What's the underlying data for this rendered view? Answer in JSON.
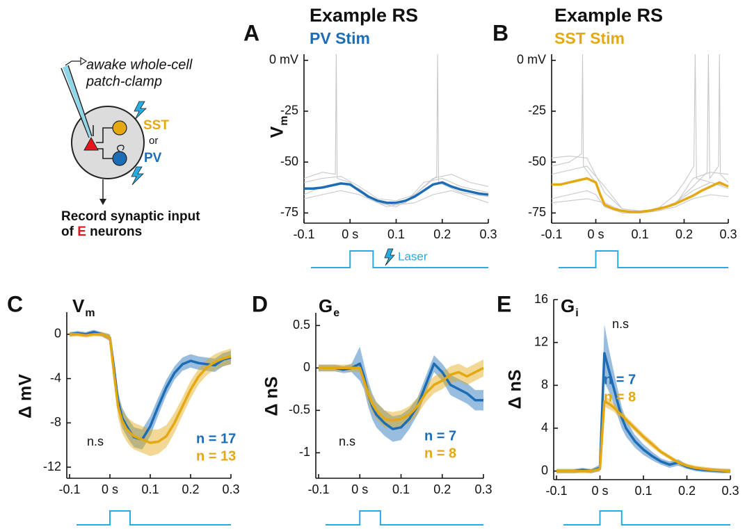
{
  "diagram": {
    "pipette_line1": "awake whole-cell",
    "pipette_line2": "patch-clamp",
    "sst": "SST",
    "or": "or",
    "pv": "PV",
    "caption_line1": "Record synaptic input",
    "caption_prefix": "of ",
    "caption_highlight": "E",
    "caption_suffix": " neurons"
  },
  "chart_data": [
    {
      "type": "line",
      "panel_label": "A",
      "title": "Example RS",
      "subtitle": "PV Stim",
      "subtitle_color": "#1c6db5",
      "ylabel": "V",
      "ylabel_sub": "m",
      "xlim": [
        -0.1,
        0.3
      ],
      "xticks": [
        -0.1,
        {
          "value": 0,
          "label": "0 s"
        },
        0.1,
        0.2,
        0.3
      ],
      "ylim": [
        -80,
        3
      ],
      "yticks": [
        {
          "value": 0,
          "label": "0 mV"
        },
        -25,
        -50,
        -75
      ],
      "stimulus": {
        "start": 0,
        "end": 0.05,
        "color": "#29abe2",
        "label": "Laser"
      },
      "trials": [
        {
          "color": "#c8c8c8",
          "x": [
            -0.1,
            -0.06,
            -0.032,
            -0.03,
            -0.028,
            0,
            0.04,
            0.08,
            0.12,
            0.16,
            0.2,
            0.24,
            0.3
          ],
          "values": [
            -58,
            -55,
            -56,
            3,
            -58,
            -60,
            -68,
            -72,
            -70,
            -60,
            -58,
            -62,
            -65
          ]
        },
        {
          "color": "#c8c8c8",
          "x": [
            -0.1,
            -0.06,
            -0.02,
            0.02,
            0.06,
            0.1,
            0.14,
            0.188,
            0.19,
            0.192,
            0.24,
            0.3
          ],
          "values": [
            -66,
            -62,
            -60,
            -63,
            -70,
            -72,
            -66,
            -57,
            3,
            -60,
            -65,
            -67
          ]
        },
        {
          "color": "#c8c8c8",
          "x": [
            -0.1,
            -0.06,
            -0.02,
            0.02,
            0.06,
            0.1,
            0.14,
            0.18,
            0.22,
            0.26,
            0.3
          ],
          "values": [
            -68,
            -66,
            -64,
            -66,
            -70,
            -71,
            -70,
            -66,
            -64,
            -67,
            -70
          ]
        },
        {
          "color": "#c8c8c8",
          "x": [
            -0.1,
            -0.06,
            -0.02,
            0.02,
            0.06,
            0.1,
            0.14,
            0.18,
            0.22,
            0.26,
            0.3
          ],
          "values": [
            -60,
            -58,
            -57,
            -62,
            -68,
            -69,
            -66,
            -58,
            -56,
            -60,
            -62
          ]
        }
      ],
      "x": [
        -0.1,
        -0.08,
        -0.06,
        -0.04,
        -0.02,
        0,
        0.02,
        0.04,
        0.06,
        0.08,
        0.1,
        0.12,
        0.14,
        0.16,
        0.18,
        0.2,
        0.22,
        0.24,
        0.26,
        0.28,
        0.3
      ],
      "series": [
        {
          "color": "#1c6db5",
          "values": [
            -63,
            -63,
            -62.5,
            -61.5,
            -60.5,
            -61,
            -64,
            -67,
            -69,
            -70,
            -70,
            -69,
            -67,
            -64,
            -61,
            -60,
            -62,
            -63.5,
            -64.5,
            -65.5,
            -66
          ]
        }
      ]
    },
    {
      "type": "line",
      "panel_label": "B",
      "title": "Example RS",
      "subtitle": "SST Stim",
      "subtitle_color": "#e3a812",
      "xlim": [
        -0.1,
        0.3
      ],
      "xticks": [
        -0.1,
        {
          "value": 0,
          "label": "0 s"
        },
        0.1,
        0.2,
        0.3
      ],
      "ylim": [
        -80,
        3
      ],
      "yticks": [
        {
          "value": 0,
          "label": "0 mV"
        },
        -25,
        -50,
        -75
      ],
      "stimulus": {
        "start": 0,
        "end": 0.05,
        "color": "#29abe2"
      },
      "trials": [
        {
          "color": "#c8c8c8",
          "x": [
            -0.1,
            -0.06,
            -0.032,
            -0.03,
            -0.028,
            0,
            0.02,
            0.06,
            0.1,
            0.14,
            0.18,
            0.2,
            0.222,
            0.225,
            0.228,
            0.26,
            0.3
          ],
          "values": [
            -52,
            -50,
            -46,
            3,
            -52,
            -60,
            -72,
            -75,
            -75,
            -73,
            -66,
            -60,
            -52,
            3,
            -58,
            -60,
            -63
          ]
        },
        {
          "color": "#c8c8c8",
          "x": [
            -0.1,
            -0.06,
            -0.02,
            0,
            0.02,
            0.06,
            0.1,
            0.14,
            0.18,
            0.22,
            0.252,
            0.255,
            0.258,
            0.278,
            0.28,
            0.282,
            0.3
          ],
          "values": [
            -68,
            -66,
            -64,
            -66,
            -72,
            -74,
            -75,
            -74,
            -70,
            -62,
            -55,
            3,
            -58,
            -52,
            3,
            -56,
            -60
          ]
        },
        {
          "color": "#c8c8c8",
          "x": [
            -0.1,
            -0.06,
            -0.02,
            0.02,
            0.06,
            0.1,
            0.14,
            0.18,
            0.22,
            0.26,
            0.3
          ],
          "values": [
            -48,
            -47,
            -48,
            -65,
            -73,
            -74,
            -73,
            -70,
            -64,
            -60,
            -62
          ]
        },
        {
          "color": "#c8c8c8",
          "x": [
            -0.1,
            -0.06,
            -0.02,
            0.02,
            0.06,
            0.1,
            0.14,
            0.18,
            0.22,
            0.26,
            0.3
          ],
          "values": [
            -70,
            -69,
            -68,
            -70,
            -74,
            -75,
            -74,
            -72,
            -68,
            -66,
            -67
          ]
        },
        {
          "color": "#c8c8c8",
          "x": [
            -0.1,
            -0.06,
            -0.02,
            0.02,
            0.06,
            0.1,
            0.14,
            0.18,
            0.22,
            0.26,
            0.3
          ],
          "values": [
            -56,
            -54,
            -52,
            -62,
            -73,
            -74,
            -73,
            -71,
            -58,
            -55,
            -56
          ]
        }
      ],
      "x": [
        -0.1,
        -0.08,
        -0.06,
        -0.04,
        -0.02,
        0,
        0.01,
        0.02,
        0.04,
        0.06,
        0.08,
        0.1,
        0.12,
        0.14,
        0.16,
        0.18,
        0.2,
        0.22,
        0.24,
        0.26,
        0.28,
        0.3
      ],
      "series": [
        {
          "color": "#e3a812",
          "values": [
            -61,
            -61,
            -60,
            -59,
            -58,
            -60,
            -66,
            -71,
            -73,
            -74,
            -74.5,
            -74.5,
            -74,
            -73,
            -72,
            -70.5,
            -68.5,
            -66.5,
            -64,
            -62,
            -60,
            -62
          ]
        }
      ]
    },
    {
      "type": "line",
      "panel_label": "C",
      "title": "V",
      "title_sub": "m",
      "ylabel": "Δ mV",
      "annotation": "n.s",
      "xlim": [
        -0.1,
        0.3
      ],
      "xticks": [
        -0.1,
        {
          "value": 0,
          "label": "0 s"
        },
        0.1,
        0.2,
        0.3
      ],
      "ylim": [
        -13,
        2
      ],
      "yticks": [
        0,
        -4,
        -8,
        -12
      ],
      "stimulus": {
        "start": 0,
        "end": 0.05,
        "color": "#29abe2"
      },
      "x": [
        -0.1,
        -0.08,
        -0.06,
        -0.04,
        -0.02,
        0,
        0.01,
        0.02,
        0.03,
        0.04,
        0.05,
        0.06,
        0.08,
        0.1,
        0.12,
        0.14,
        0.16,
        0.18,
        0.2,
        0.22,
        0.24,
        0.26,
        0.28,
        0.3
      ],
      "series": [
        {
          "name": "n = 17",
          "color": "#1c6db5",
          "values": [
            0,
            0.1,
            0,
            0.2,
            0,
            -0.3,
            -3,
            -6,
            -7.5,
            -8.2,
            -8.8,
            -9.3,
            -9.5,
            -8.3,
            -6.5,
            -4.8,
            -3.5,
            -2.7,
            -2.4,
            -2.6,
            -2.7,
            -2.8,
            -2.3,
            -2.1
          ],
          "error": [
            0.2,
            0.2,
            0.2,
            0.2,
            0.2,
            0.3,
            0.6,
            0.8,
            0.9,
            0.9,
            0.9,
            0.9,
            0.9,
            0.9,
            0.8,
            0.7,
            0.6,
            0.6,
            0.6,
            0.6,
            0.6,
            0.6,
            0.6,
            0.6
          ]
        },
        {
          "name": "n = 13",
          "color": "#e3a812",
          "values": [
            0,
            0,
            -0.1,
            0,
            0,
            -0.3,
            -3.5,
            -6.5,
            -7.8,
            -8.5,
            -8.9,
            -9.2,
            -9.5,
            -9.8,
            -9.7,
            -9.2,
            -8,
            -6.5,
            -5,
            -3.8,
            -3,
            -2.5,
            -2.2,
            -2
          ],
          "error": [
            0.2,
            0.2,
            0.2,
            0.2,
            0.2,
            0.3,
            0.8,
            1,
            1.1,
            1.1,
            1.2,
            1.2,
            1.2,
            1.2,
            1.1,
            1,
            0.9,
            0.8,
            0.8,
            0.7,
            0.7,
            0.7,
            0.7,
            0.7
          ]
        }
      ]
    },
    {
      "type": "line",
      "panel_label": "D",
      "title": "G",
      "title_sub": "e",
      "ylabel": "Δ nS",
      "annotation": "n.s",
      "xlim": [
        -0.1,
        0.3
      ],
      "xticks": [
        -0.1,
        {
          "value": 0,
          "label": "0 s"
        },
        0.1,
        0.2,
        0.3
      ],
      "ylim": [
        -1.3,
        0.65
      ],
      "yticks": [
        0.5,
        0,
        -0.5,
        -1
      ],
      "stimulus": {
        "start": 0,
        "end": 0.05,
        "color": "#29abe2"
      },
      "x": [
        -0.1,
        -0.08,
        -0.06,
        -0.04,
        -0.02,
        0,
        0.01,
        0.02,
        0.03,
        0.04,
        0.05,
        0.06,
        0.08,
        0.1,
        0.12,
        0.14,
        0.16,
        0.18,
        0.2,
        0.22,
        0.24,
        0.26,
        0.28,
        0.3
      ],
      "series": [
        {
          "name": "n = 7",
          "color": "#1c6db5",
          "values": [
            0,
            0,
            0,
            -0.02,
            0,
            0.05,
            -0.1,
            -0.3,
            -0.45,
            -0.55,
            -0.6,
            -0.65,
            -0.72,
            -0.7,
            -0.6,
            -0.45,
            -0.2,
            0.05,
            -0.05,
            -0.2,
            -0.25,
            -0.3,
            -0.38,
            -0.38
          ],
          "error": [
            0.04,
            0.04,
            0.04,
            0.04,
            0.05,
            0.2,
            0.15,
            0.15,
            0.15,
            0.15,
            0.15,
            0.15,
            0.15,
            0.15,
            0.12,
            0.1,
            0.1,
            0.1,
            0.1,
            0.12,
            0.12,
            0.12,
            0.12,
            0.12
          ]
        },
        {
          "name": "n = 8",
          "color": "#e3a812",
          "values": [
            0,
            0,
            0,
            0,
            0,
            0,
            -0.15,
            -0.3,
            -0.42,
            -0.5,
            -0.55,
            -0.6,
            -0.62,
            -0.6,
            -0.55,
            -0.45,
            -0.3,
            -0.2,
            -0.15,
            -0.08,
            -0.05,
            -0.1,
            -0.05,
            0
          ],
          "error": [
            0.04,
            0.04,
            0.04,
            0.04,
            0.04,
            0.05,
            0.08,
            0.1,
            0.1,
            0.1,
            0.1,
            0.1,
            0.1,
            0.1,
            0.1,
            0.1,
            0.1,
            0.1,
            0.1,
            0.1,
            0.1,
            0.1,
            0.1,
            0.1
          ]
        }
      ]
    },
    {
      "type": "line",
      "panel_label": "E",
      "title": "G",
      "title_sub": "i",
      "ylabel": "Δ nS",
      "annotation": "n.s",
      "xlim": [
        -0.1,
        0.3
      ],
      "xticks": [
        -0.1,
        {
          "value": 0,
          "label": "0 s"
        },
        0.1,
        0.2,
        0.3
      ],
      "ylim": [
        -0.8,
        16
      ],
      "yticks": [
        0,
        4,
        8,
        12,
        16
      ],
      "stimulus": {
        "start": 0,
        "end": 0.05,
        "color": "#29abe2"
      },
      "x": [
        -0.1,
        -0.08,
        -0.06,
        -0.04,
        -0.02,
        0,
        0.01,
        0.02,
        0.03,
        0.04,
        0.05,
        0.06,
        0.08,
        0.1,
        0.12,
        0.14,
        0.16,
        0.18,
        0.2,
        0.22,
        0.24,
        0.26,
        0.28,
        0.3
      ],
      "series": [
        {
          "name": "n = 7",
          "color": "#1c6db5",
          "values": [
            0,
            0,
            0,
            0.1,
            0,
            0.3,
            11,
            9.5,
            8,
            6.5,
            5,
            4,
            2.8,
            2,
            1.4,
            0.9,
            0.6,
            0.8,
            0.4,
            0.2,
            0.1,
            0.05,
            0,
            0
          ],
          "error": [
            0.2,
            0.2,
            0.2,
            0.2,
            0.2,
            0.3,
            2.7,
            2,
            1.6,
            1.3,
            1,
            0.8,
            0.6,
            0.5,
            0.4,
            0.3,
            0.3,
            0.3,
            0.2,
            0.2,
            0.2,
            0.2,
            0.2,
            0.2
          ]
        },
        {
          "name": "n = 8",
          "color": "#e3a812",
          "values": [
            0,
            0,
            0,
            0,
            0,
            0.2,
            6.5,
            6.3,
            6,
            5.6,
            5.2,
            4.8,
            4,
            3.2,
            2.5,
            1.8,
            1.3,
            0.8,
            0.5,
            0.3,
            0.2,
            0.1,
            0.05,
            0
          ],
          "error": [
            0.2,
            0.2,
            0.2,
            0.2,
            0.2,
            0.2,
            0.5,
            0.5,
            0.4,
            0.4,
            0.4,
            0.3,
            0.3,
            0.3,
            0.3,
            0.2,
            0.2,
            0.2,
            0.2,
            0.2,
            0.2,
            0.2,
            0.2,
            0.2
          ]
        }
      ]
    }
  ]
}
